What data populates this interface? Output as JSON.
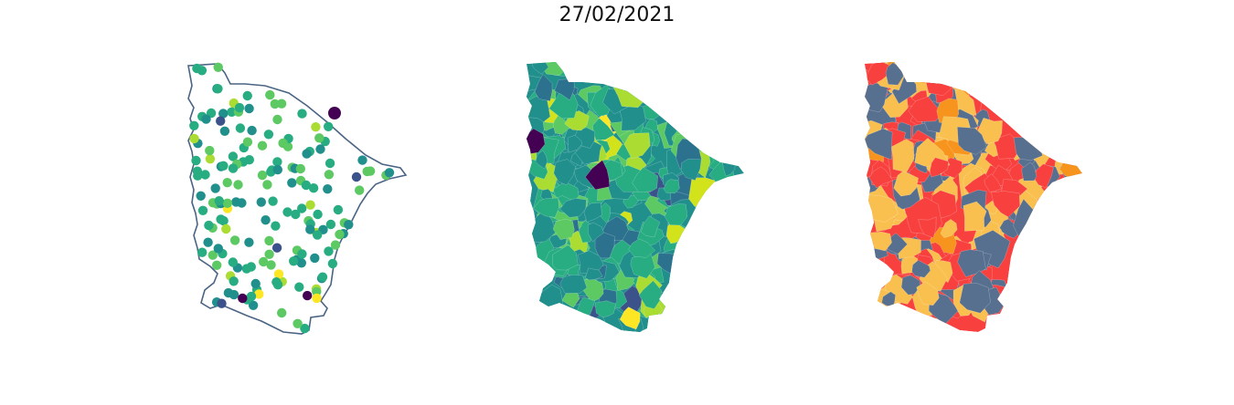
{
  "title": "27/02/2021",
  "panels": [
    {
      "kind": "stations-points",
      "outline_color": "#4a6484",
      "palette": [
        "#440154",
        "#3b528b",
        "#21908d",
        "#27ad81",
        "#5dc963",
        "#aadc32",
        "#fde725"
      ]
    },
    {
      "kind": "municipalities-continuous",
      "palette": [
        "#440154",
        "#3b528b",
        "#2c728e",
        "#21908d",
        "#27ad81",
        "#5dc963",
        "#aadc32",
        "#d2e21b",
        "#fde725"
      ]
    },
    {
      "kind": "municipalities-categorical",
      "palette": [
        "#58708f",
        "#f9c04f",
        "#f8413f",
        "#f7941d"
      ]
    }
  ]
}
